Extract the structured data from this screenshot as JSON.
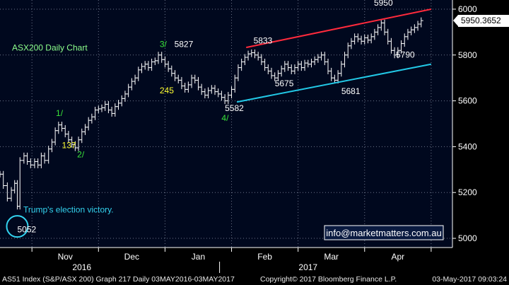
{
  "chart_data": {
    "type": "line",
    "style": "ohlc-bars",
    "title": "ASX200 Daily Chart",
    "ylim": [
      4960,
      6040
    ],
    "yticks": [
      5000,
      5200,
      5400,
      5600,
      5800,
      6000
    ],
    "ytick_labels": [
      "5000",
      "5200",
      "5400",
      "5600",
      "5800",
      "6000"
    ],
    "xmonths": [
      {
        "label": "Nov",
        "pos": 0.5
      },
      {
        "label": "Dec",
        "pos": 1.5
      },
      {
        "label": "Jan",
        "pos": 2.5
      },
      {
        "label": "Feb",
        "pos": 3.5
      },
      {
        "label": "Mar",
        "pos": 4.5
      },
      {
        "label": "Apr",
        "pos": 5.5
      }
    ],
    "xyears": [
      {
        "label": "2016",
        "pos": 0.75
      },
      {
        "label": "2017",
        "pos": 4.15
      }
    ],
    "month_boundaries": [
      0.0,
      1.0,
      2.0,
      3.0,
      4.0,
      5.0,
      6.0
    ],
    "xlim": [
      -0.48,
      6.32
    ],
    "last_price_label": "5950.3652",
    "last_price": 5950.3652,
    "closes": [
      [
        -0.48,
        5280
      ],
      [
        -0.43,
        5230
      ],
      [
        -0.37,
        5175
      ],
      [
        -0.31,
        5210
      ],
      [
        -0.26,
        5240
      ],
      [
        -0.22,
        5140
      ],
      [
        -0.18,
        5340
      ],
      [
        -0.12,
        5360
      ],
      [
        -0.07,
        5335
      ],
      [
        -0.02,
        5320
      ],
      [
        0.04,
        5335
      ],
      [
        0.09,
        5320
      ],
      [
        0.14,
        5360
      ],
      [
        0.19,
        5340
      ],
      [
        0.25,
        5390
      ],
      [
        0.3,
        5420
      ],
      [
        0.35,
        5470
      ],
      [
        0.4,
        5495
      ],
      [
        0.45,
        5480
      ],
      [
        0.5,
        5455
      ],
      [
        0.55,
        5430
      ],
      [
        0.6,
        5410
      ],
      [
        0.65,
        5395
      ],
      [
        0.7,
        5430
      ],
      [
        0.75,
        5465
      ],
      [
        0.8,
        5485
      ],
      [
        0.85,
        5515
      ],
      [
        0.9,
        5530
      ],
      [
        0.95,
        5560
      ],
      [
        1.0,
        5565
      ],
      [
        1.05,
        5570
      ],
      [
        1.1,
        5585
      ],
      [
        1.15,
        5560
      ],
      [
        1.2,
        5545
      ],
      [
        1.25,
        5575
      ],
      [
        1.3,
        5590
      ],
      [
        1.35,
        5610
      ],
      [
        1.4,
        5630
      ],
      [
        1.45,
        5660
      ],
      [
        1.5,
        5685
      ],
      [
        1.55,
        5700
      ],
      [
        1.6,
        5735
      ],
      [
        1.65,
        5750
      ],
      [
        1.7,
        5760
      ],
      [
        1.75,
        5745
      ],
      [
        1.8,
        5770
      ],
      [
        1.85,
        5775
      ],
      [
        1.9,
        5800
      ],
      [
        1.95,
        5780
      ],
      [
        2.0,
        5760
      ],
      [
        2.05,
        5740
      ],
      [
        2.1,
        5720
      ],
      [
        2.15,
        5700
      ],
      [
        2.2,
        5690
      ],
      [
        2.25,
        5665
      ],
      [
        2.3,
        5650
      ],
      [
        2.35,
        5670
      ],
      [
        2.4,
        5700
      ],
      [
        2.45,
        5690
      ],
      [
        2.5,
        5660
      ],
      [
        2.55,
        5640
      ],
      [
        2.6,
        5625
      ],
      [
        2.65,
        5645
      ],
      [
        2.7,
        5655
      ],
      [
        2.75,
        5640
      ],
      [
        2.8,
        5630
      ],
      [
        2.85,
        5615
      ],
      [
        2.9,
        5600
      ],
      [
        2.95,
        5625
      ],
      [
        3.0,
        5650
      ],
      [
        3.05,
        5700
      ],
      [
        3.1,
        5745
      ],
      [
        3.15,
        5770
      ],
      [
        3.2,
        5790
      ],
      [
        3.25,
        5805
      ],
      [
        3.3,
        5810
      ],
      [
        3.35,
        5800
      ],
      [
        3.4,
        5790
      ],
      [
        3.45,
        5770
      ],
      [
        3.5,
        5745
      ],
      [
        3.55,
        5730
      ],
      [
        3.6,
        5710
      ],
      [
        3.65,
        5700
      ],
      [
        3.7,
        5720
      ],
      [
        3.75,
        5740
      ],
      [
        3.8,
        5760
      ],
      [
        3.85,
        5745
      ],
      [
        3.9,
        5730
      ],
      [
        3.95,
        5745
      ],
      [
        4.0,
        5760
      ],
      [
        4.05,
        5745
      ],
      [
        4.1,
        5765
      ],
      [
        4.15,
        5760
      ],
      [
        4.2,
        5770
      ],
      [
        4.25,
        5780
      ],
      [
        4.3,
        5790
      ],
      [
        4.35,
        5800
      ],
      [
        4.4,
        5770
      ],
      [
        4.45,
        5730
      ],
      [
        4.5,
        5700
      ],
      [
        4.55,
        5690
      ],
      [
        4.6,
        5720
      ],
      [
        4.65,
        5760
      ],
      [
        4.7,
        5800
      ],
      [
        4.75,
        5840
      ],
      [
        4.8,
        5860
      ],
      [
        4.85,
        5880
      ],
      [
        4.9,
        5870
      ],
      [
        4.95,
        5860
      ],
      [
        5.0,
        5875
      ],
      [
        5.05,
        5865
      ],
      [
        5.1,
        5880
      ],
      [
        5.15,
        5900
      ],
      [
        5.2,
        5920
      ],
      [
        5.25,
        5940
      ],
      [
        5.3,
        5900
      ],
      [
        5.35,
        5860
      ],
      [
        5.4,
        5820
      ],
      [
        5.45,
        5800
      ],
      [
        5.5,
        5820
      ],
      [
        5.55,
        5850
      ],
      [
        5.6,
        5880
      ],
      [
        5.65,
        5900
      ],
      [
        5.7,
        5910
      ],
      [
        5.75,
        5920
      ],
      [
        5.8,
        5935
      ],
      [
        5.85,
        5950
      ]
    ],
    "trendlines": [
      {
        "color": "#ff2a3c",
        "from": [
          3.22,
          5833
        ],
        "to": [
          6.0,
          6000
        ]
      },
      {
        "color": "#22c8e6",
        "from": [
          3.08,
          5595
        ],
        "to": [
          6.0,
          5760
        ]
      }
    ],
    "annotations": [
      {
        "text": "ASX200 Daily Chart",
        "at": [
          -0.3,
          5819
        ],
        "color": "#8cff8c"
      },
      {
        "text": "Trump's election victory.",
        "at": [
          -0.13,
          5113
        ],
        "color": "#33d4f0"
      },
      {
        "text": "5052",
        "at": [
          -0.22,
          5027
        ],
        "color": "#ffffff"
      },
      {
        "text": "1/",
        "at": [
          0.36,
          5534
        ],
        "color": "#39e639"
      },
      {
        "text": "137",
        "at": [
          0.45,
          5393
        ],
        "color": "#ffff33"
      },
      {
        "text": "2/",
        "at": [
          0.68,
          5353
        ],
        "color": "#39e639"
      },
      {
        "text": "3/",
        "at": [
          1.92,
          5835
        ],
        "color": "#39e639"
      },
      {
        "text": "5827",
        "at": [
          2.14,
          5835
        ],
        "color": "#ffffff"
      },
      {
        "text": "245",
        "at": [
          1.92,
          5632
        ],
        "color": "#ffff33"
      },
      {
        "text": "4/",
        "at": [
          2.85,
          5513
        ],
        "color": "#39e639"
      },
      {
        "text": "5582",
        "at": [
          2.9,
          5556
        ],
        "color": "#ffffff"
      },
      {
        "text": "5833",
        "at": [
          3.33,
          5851
        ],
        "color": "#ffffff"
      },
      {
        "text": "5675",
        "at": [
          3.65,
          5663
        ],
        "color": "#ffffff"
      },
      {
        "text": "5681",
        "at": [
          4.65,
          5629
        ],
        "color": "#ffffff"
      },
      {
        "text": "5950",
        "at": [
          5.14,
          6016
        ],
        "color": "#ffffff"
      },
      {
        "text": "5790",
        "at": [
          5.47,
          5788
        ],
        "color": "#ffffff"
      }
    ],
    "election_marker": {
      "at": [
        -0.22,
        5052
      ],
      "color": "#33d4f0"
    }
  },
  "watermark": {
    "text": "info@marketmatters.com.au"
  },
  "footer": {
    "left": "AS51 Index (S&P/ASX 200) Graph 217  Daily 03MAY2016-03MAY2017",
    "center": "Copyright© 2017 Bloomberg Finance L.P.",
    "right": "03-May-2017 09:03:24"
  },
  "colors": {
    "background": "#00081e",
    "axis_background": "#000000",
    "gridline": "#9aa4b8",
    "bars": "#ffffff"
  }
}
